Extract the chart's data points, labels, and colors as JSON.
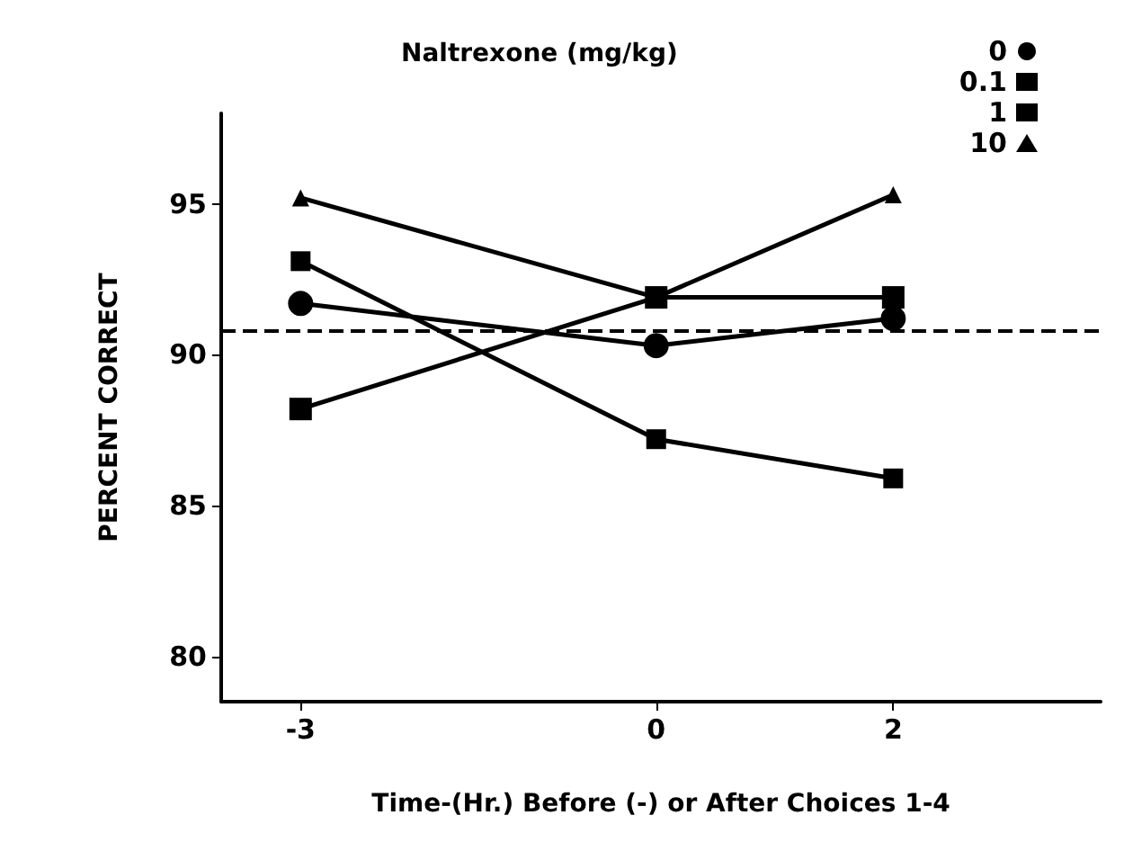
{
  "chart_data": {
    "type": "line",
    "legend_title": "Naltrexone (mg/kg)",
    "xlabel": "Time-(Hr.) Before (-) or After Choices 1-4",
    "ylabel": "PERCENT CORRECT",
    "x": [
      -3,
      0,
      2
    ],
    "xlim": [
      -3.67,
      3.75
    ],
    "xticks": [
      -3,
      0,
      2
    ],
    "ylim": [
      78.5,
      98
    ],
    "yticks": [
      80,
      85,
      90,
      95
    ],
    "grid": false,
    "legend": "top right",
    "line_style": "solid",
    "series": [
      {
        "name": "0",
        "color": "#000000",
        "marker": "circle",
        "values": [
          91.7,
          90.3,
          91.2
        ]
      },
      {
        "name": "0.1",
        "color": "#000000",
        "marker": "square",
        "values": [
          88.2,
          91.9,
          91.9
        ]
      },
      {
        "name": "1",
        "color": "#000000",
        "marker": "square",
        "values": [
          93.1,
          87.2,
          85.9
        ]
      },
      {
        "name": "10",
        "color": "#000000",
        "marker": "triangle",
        "values": [
          95.2,
          91.9,
          95.3
        ]
      }
    ],
    "ref_lines": [
      {
        "axis": "y",
        "value": 90.8,
        "line_style": "dashed",
        "color": "#000000"
      }
    ]
  }
}
